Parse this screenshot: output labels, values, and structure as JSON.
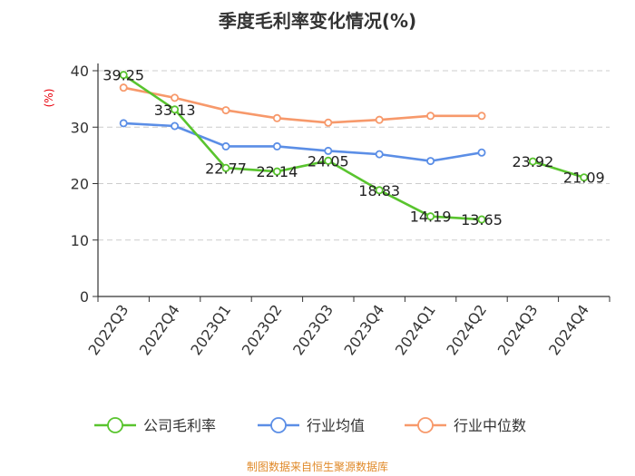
{
  "colors": {
    "company": "#59c42e",
    "industry_avg": "#5b8ee6",
    "industry_median": "#f7996b",
    "unit": "#e8000b",
    "source": "#e08a2a",
    "grid": "#cccccc",
    "axis": "#333333"
  },
  "chart_data": {
    "type": "line",
    "title": "季度毛利率变化情况(%)",
    "ylabel": "(%)",
    "xlabel": "",
    "ylim": [
      0,
      40
    ],
    "yticks": [
      "0",
      "10",
      "20",
      "30",
      "40"
    ],
    "grid": true,
    "legend_position": "bottom",
    "categories": [
      "2022Q3",
      "2022Q4",
      "2023Q1",
      "2023Q2",
      "2023Q3",
      "2023Q4",
      "2024Q1",
      "2024Q2",
      "2024Q3",
      "2024Q4"
    ],
    "series": [
      {
        "name": "公司毛利率",
        "values": [
          39.25,
          33.13,
          22.77,
          22.14,
          24.05,
          18.83,
          14.19,
          13.65,
          23.92,
          21.09
        ],
        "labels": [
          "39.25",
          "33.13",
          "22.77",
          "22.14",
          "24.05",
          "18.83",
          "14.19",
          "13.65",
          "23.92",
          "21.09"
        ],
        "segments": [
          [
            0,
            7
          ],
          [
            8,
            9
          ]
        ]
      },
      {
        "name": "行业均值",
        "values": [
          30.7,
          30.2,
          26.6,
          26.6,
          25.8,
          25.2,
          24.0,
          25.5,
          null,
          null
        ]
      },
      {
        "name": "行业中位数",
        "values": [
          37.0,
          35.2,
          33.0,
          31.6,
          30.8,
          31.3,
          32.0,
          32.0,
          null,
          null
        ]
      }
    ]
  },
  "footer": {
    "source": "制图数据来自恒生聚源数据库"
  }
}
